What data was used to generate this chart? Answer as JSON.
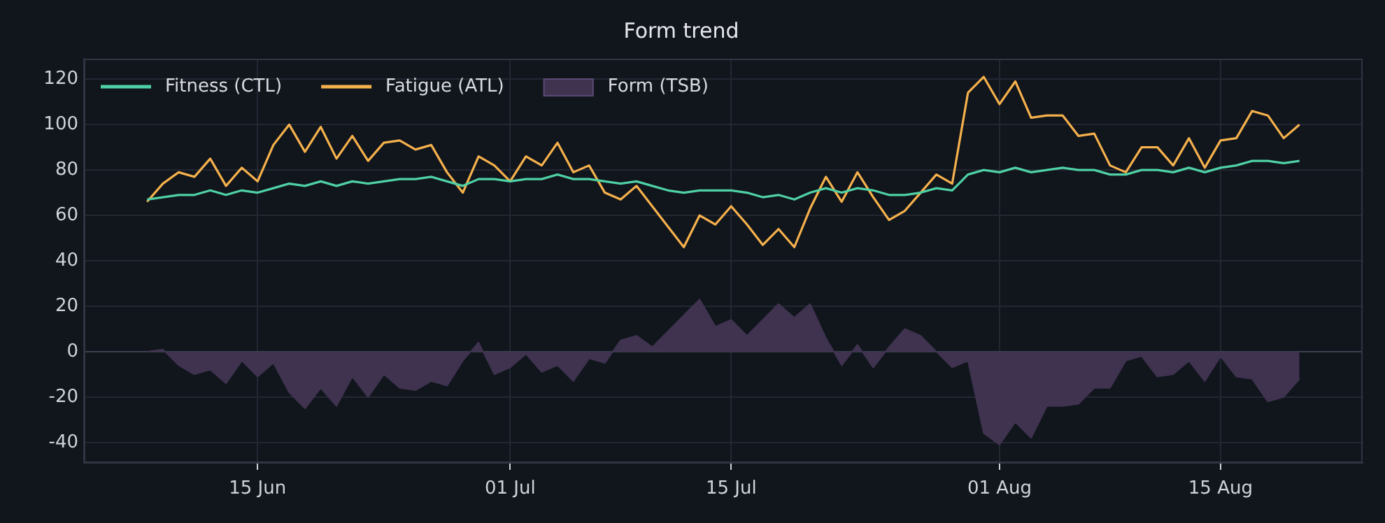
{
  "chart_data": {
    "type": "line",
    "title": "Form trend",
    "x": [
      "--06-08",
      "--06-09",
      "--06-10",
      "--06-11",
      "--06-12",
      "--06-13",
      "--06-14",
      "--06-15",
      "--06-16",
      "--06-17",
      "--06-18",
      "--06-19",
      "--06-20",
      "--06-21",
      "--06-22",
      "--06-23",
      "--06-24",
      "--06-25",
      "--06-26",
      "--06-27",
      "--06-28",
      "--06-29",
      "--06-30",
      "--07-01",
      "--07-02",
      "--07-03",
      "--07-04",
      "--07-05",
      "--07-06",
      "--07-07",
      "--07-08",
      "--07-09",
      "--07-10",
      "--07-11",
      "--07-12",
      "--07-13",
      "--07-14",
      "--07-15",
      "--07-16",
      "--07-17",
      "--07-18",
      "--07-19",
      "--07-20",
      "--07-21",
      "--07-22",
      "--07-23",
      "--07-24",
      "--07-25",
      "--07-26",
      "--07-27",
      "--07-28",
      "--07-29",
      "--07-30",
      "--07-31",
      "--08-01",
      "--08-02",
      "--08-03",
      "--08-04",
      "--08-05",
      "--08-06",
      "--08-07",
      "--08-08",
      "--08-09",
      "--08-10",
      "--08-11",
      "--08-12",
      "--08-13",
      "--08-14",
      "--08-15",
      "--08-16",
      "--08-17",
      "--08-18",
      "--08-19",
      "--08-20"
    ],
    "series": [
      {
        "name": "Fitness (CTL)",
        "type": "line",
        "color": "#4fd1a5",
        "values": [
          67,
          68,
          69,
          69,
          71,
          69,
          71,
          70,
          72,
          74,
          73,
          75,
          73,
          75,
          74,
          75,
          76,
          76,
          77,
          75,
          73,
          76,
          76,
          75,
          76,
          76,
          78,
          76,
          76,
          75,
          74,
          75,
          73,
          71,
          70,
          71,
          71,
          71,
          70,
          68,
          69,
          67,
          70,
          72,
          70,
          72,
          71,
          69,
          69,
          70,
          72,
          71,
          78,
          80,
          79,
          81,
          79,
          80,
          81,
          80,
          80,
          78,
          78,
          80,
          80,
          79,
          81,
          79,
          81,
          82,
          84,
          84,
          83,
          84
        ]
      },
      {
        "name": "Fatigue (ATL)",
        "type": "line",
        "color": "#f5b14c",
        "values": [
          66,
          74,
          79,
          77,
          85,
          73,
          81,
          75,
          91,
          100,
          88,
          99,
          85,
          95,
          84,
          92,
          93,
          89,
          91,
          79,
          70,
          86,
          82,
          75,
          86,
          82,
          92,
          79,
          82,
          70,
          67,
          73,
          64,
          55,
          46,
          60,
          56,
          64,
          56,
          47,
          54,
          46,
          63,
          77,
          66,
          79,
          68,
          58,
          62,
          70,
          78,
          74,
          114,
          121,
          109,
          119,
          103,
          104,
          104,
          95,
          96,
          82,
          79,
          90,
          90,
          82,
          94,
          81,
          93,
          94,
          106,
          104,
          94,
          100
        ]
      },
      {
        "name": "Form (TSB)",
        "type": "area",
        "color": "#3f3350",
        "values": [
          0,
          1,
          -6,
          -10,
          -8,
          -14,
          -4,
          -11,
          -5,
          -18,
          -25,
          -16,
          -24,
          -11,
          -20,
          -10,
          -16,
          -17,
          -13,
          -15,
          -4,
          4,
          -10,
          -7,
          -1,
          -9,
          -6,
          -13,
          -3,
          -5,
          5,
          7,
          2,
          9,
          16,
          23,
          11,
          14,
          7,
          14,
          21,
          15,
          21,
          6,
          -6,
          3,
          -7,
          2,
          10,
          7,
          0,
          -7,
          -4,
          -36,
          -41,
          -31,
          -38,
          -24,
          -24,
          -23,
          -16,
          -16,
          -4,
          -2,
          -11,
          -10,
          -4,
          -13,
          -2,
          -11,
          -12,
          -22,
          -20,
          -12
        ]
      }
    ],
    "xlim": [
      "--06-04",
      "--08-24"
    ],
    "xticks": [
      {
        "value": "--06-15",
        "label": "15 Jun"
      },
      {
        "value": "--07-01",
        "label": "01 Jul"
      },
      {
        "value": "--07-15",
        "label": "15 Jul"
      },
      {
        "value": "--08-01",
        "label": "01 Aug"
      },
      {
        "value": "--08-15",
        "label": "15 Aug"
      }
    ],
    "ylim": [
      -49,
      129
    ],
    "yticks": [
      -40,
      -20,
      0,
      20,
      40,
      60,
      80,
      100,
      120
    ],
    "ref_lines": [
      {
        "axis": "y",
        "value": 0,
        "color": "#3b4150"
      }
    ],
    "grid": true,
    "legend": "top left",
    "marker": "none",
    "line_style": "solid"
  }
}
